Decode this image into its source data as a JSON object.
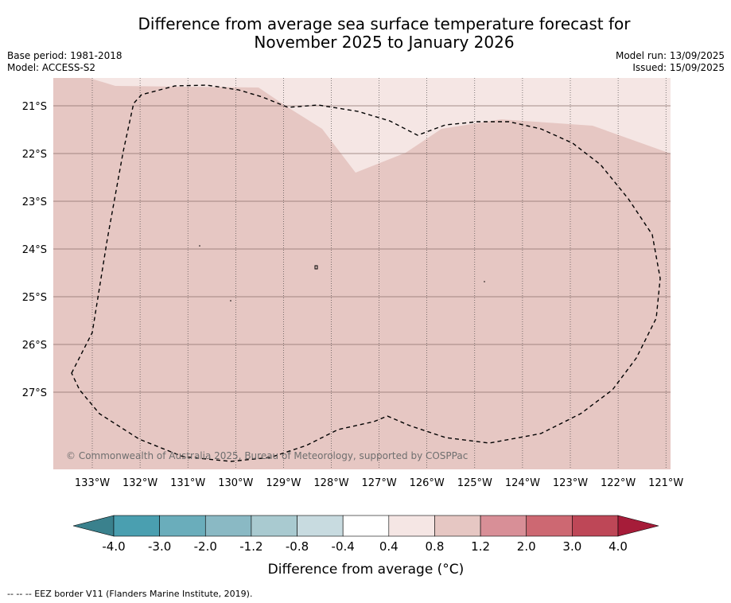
{
  "title_line1": "Difference from average sea surface temperature forecast for",
  "title_line2": "November 2025 to January 2026",
  "base_period": "Base period: 1981-2018",
  "model": "Model: ACCESS-S2",
  "model_run": "Model run: 13/09/2025",
  "issued": "Issued: 15/09/2025",
  "copyright": "© Commonwealth of Australia 2025, Bureau of Meteorology, supported by COSPPac",
  "latitudes": [
    "21°S",
    "22°S",
    "23°S",
    "24°S",
    "25°S",
    "26°S",
    "27°S"
  ],
  "longitudes": [
    "133°W",
    "132°W",
    "131°W",
    "130°W",
    "129°W",
    "128°W",
    "127°W",
    "126°W",
    "125°W",
    "124°W",
    "123°W",
    "122°W",
    "121°W"
  ],
  "colorbar": {
    "title": "Difference from average (°C)",
    "tick_labels": [
      "-4.0",
      "-3.0",
      "-2.0",
      "-1.2",
      "-0.8",
      "-0.4",
      "0.4",
      "0.8",
      "1.2",
      "2.0",
      "3.0",
      "4.0"
    ],
    "colors": [
      "#4a9fb0",
      "#6aadbb",
      "#8ab9c4",
      "#a9cad0",
      "#c8dbe0",
      "#ffffff",
      "#f5e6e4",
      "#e6c7c3",
      "#d88f97",
      "#cd6872",
      "#be4757"
    ],
    "under_color": "#3a818d",
    "over_color": "#a61c39"
  },
  "map_colors": {
    "main_fill": "#e6c7c3",
    "light_fill": "#f5e6e4"
  },
  "footnote": "--  --  -- EEZ border V11 (Flanders Marine Institute, 2019)."
}
